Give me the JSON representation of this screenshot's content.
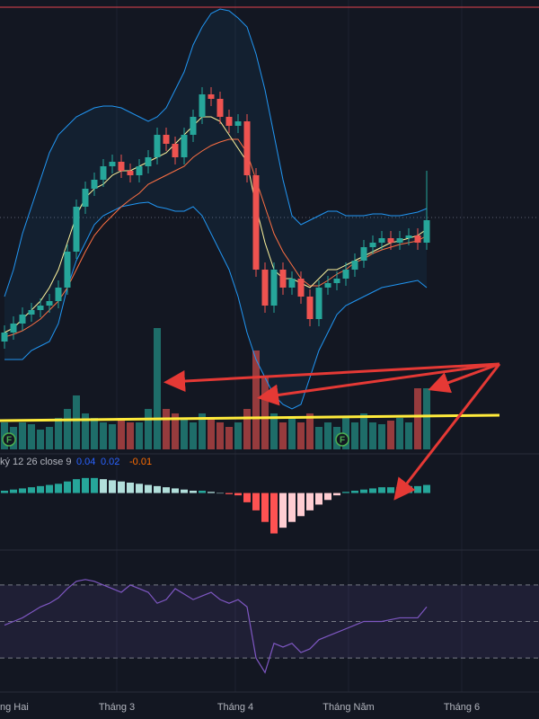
{
  "chart_data": {
    "type": "candlestick",
    "open": [
      120,
      130,
      140,
      150,
      155,
      160,
      165,
      180,
      220,
      270,
      290,
      300,
      315,
      320,
      310,
      305,
      315,
      325,
      350,
      340,
      325,
      350,
      370,
      395,
      390,
      370,
      360,
      365,
      305,
      200,
      160,
      200,
      180,
      190,
      170,
      145,
      180,
      185,
      190,
      200,
      210,
      225,
      230,
      235,
      230,
      235,
      238,
      230
    ],
    "high": [
      138,
      148,
      158,
      163,
      168,
      173,
      188,
      228,
      278,
      298,
      308,
      323,
      328,
      328,
      318,
      323,
      333,
      358,
      358,
      348,
      358,
      378,
      403,
      403,
      398,
      378,
      373,
      373,
      313,
      208,
      208,
      208,
      198,
      198,
      178,
      188,
      193,
      198,
      208,
      218,
      233,
      238,
      243,
      243,
      243,
      246,
      246,
      310
    ],
    "low": [
      112,
      122,
      132,
      142,
      147,
      152,
      157,
      172,
      212,
      262,
      282,
      292,
      307,
      302,
      297,
      297,
      307,
      317,
      332,
      317,
      317,
      342,
      362,
      382,
      362,
      352,
      352,
      297,
      192,
      152,
      152,
      172,
      172,
      162,
      137,
      137,
      172,
      177,
      182,
      192,
      202,
      217,
      222,
      222,
      222,
      227,
      222,
      222
    ],
    "close": [
      130,
      140,
      150,
      155,
      160,
      165,
      180,
      220,
      270,
      290,
      300,
      315,
      320,
      310,
      305,
      315,
      325,
      350,
      340,
      325,
      350,
      370,
      395,
      390,
      370,
      360,
      365,
      305,
      200,
      160,
      200,
      180,
      190,
      170,
      145,
      180,
      185,
      190,
      200,
      210,
      225,
      230,
      235,
      230,
      235,
      238,
      230,
      255
    ],
    "ylim": [
      30,
      500
    ],
    "up_color": "#26a69a",
    "down_color": "#ef5350",
    "bollinger_upper": [
      170,
      200,
      240,
      270,
      300,
      330,
      350,
      360,
      370,
      375,
      380,
      382,
      382,
      380,
      375,
      370,
      365,
      370,
      380,
      400,
      420,
      450,
      470,
      485,
      490,
      488,
      480,
      470,
      440,
      400,
      350,
      300,
      260,
      250,
      255,
      260,
      265,
      265,
      260,
      260,
      260,
      262,
      262,
      260,
      260,
      262,
      264,
      268
    ],
    "bollinger_lower": [
      100,
      100,
      100,
      110,
      115,
      120,
      140,
      180,
      210,
      230,
      250,
      260,
      265,
      270,
      272,
      274,
      275,
      270,
      268,
      265,
      265,
      270,
      260,
      240,
      220,
      200,
      170,
      130,
      100,
      80,
      60,
      50,
      45,
      50,
      80,
      110,
      130,
      150,
      160,
      165,
      170,
      175,
      180,
      182,
      184,
      186,
      188,
      180
    ],
    "ma_fast": [
      130,
      135,
      145,
      155,
      165,
      180,
      200,
      230,
      260,
      280,
      290,
      295,
      305,
      310,
      310,
      315,
      320,
      325,
      330,
      340,
      350,
      360,
      370,
      370,
      365,
      350,
      335,
      320,
      270,
      230,
      200,
      190,
      190,
      185,
      180,
      190,
      200,
      200,
      205,
      210,
      215,
      220,
      225,
      230,
      232,
      235,
      238,
      245
    ],
    "ma_slow": [
      125,
      128,
      132,
      138,
      145,
      155,
      165,
      180,
      200,
      220,
      238,
      250,
      260,
      270,
      278,
      285,
      295,
      300,
      305,
      310,
      315,
      325,
      332,
      338,
      342,
      345,
      345,
      330,
      300,
      270,
      240,
      220,
      205,
      190,
      182,
      182,
      188,
      195,
      200,
      208,
      212,
      218,
      222,
      225,
      228,
      230,
      232,
      238
    ],
    "volume": [
      30,
      25,
      30,
      28,
      22,
      25,
      35,
      45,
      60,
      40,
      35,
      30,
      28,
      35,
      30,
      30,
      45,
      135,
      45,
      40,
      35,
      30,
      40,
      35,
      30,
      25,
      30,
      45,
      110,
      80,
      40,
      30,
      35,
      30,
      40,
      25,
      30,
      25,
      35,
      30,
      40,
      30,
      28,
      32,
      35,
      30,
      68,
      68
    ],
    "volume_ylim": [
      0,
      140
    ],
    "macd_label": "ký 12 26 close 9",
    "macd_values": [
      0.04,
      0.02,
      -0.01
    ],
    "macd_histogram": [
      0.002,
      0.003,
      0.004,
      0.005,
      0.006,
      0.007,
      0.008,
      0.01,
      0.012,
      0.013,
      0.013,
      0.012,
      0.011,
      0.01,
      0.009,
      0.008,
      0.007,
      0.006,
      0.005,
      0.004,
      0.003,
      0.002,
      0.002,
      0.001,
      0.0,
      -0.001,
      -0.002,
      -0.008,
      -0.015,
      -0.025,
      -0.035,
      -0.03,
      -0.025,
      -0.02,
      -0.015,
      -0.01,
      -0.006,
      -0.002,
      0.001,
      0.002,
      0.003,
      0.004,
      0.005,
      0.005,
      0.005,
      0.006,
      0.006,
      0.007
    ],
    "macd_ylim": [
      -0.04,
      0.03
    ],
    "rsi": [
      48,
      50,
      52,
      55,
      58,
      60,
      63,
      68,
      72,
      73,
      72,
      70,
      68,
      66,
      70,
      68,
      66,
      60,
      62,
      68,
      65,
      62,
      64,
      66,
      62,
      60,
      62,
      58,
      30,
      22,
      38,
      36,
      38,
      33,
      35,
      40,
      42,
      44,
      46,
      48,
      50,
      50,
      50,
      51,
      52,
      52,
      52,
      58
    ],
    "rsi_ylim": [
      0,
      100
    ],
    "rsi_bands": [
      30,
      50,
      70
    ],
    "events": [
      "F",
      "F"
    ],
    "x_axis_labels": [
      "ng Hai",
      "Tháng 3",
      "Tháng 4",
      "Tháng Năm",
      "Tháng 6"
    ]
  }
}
